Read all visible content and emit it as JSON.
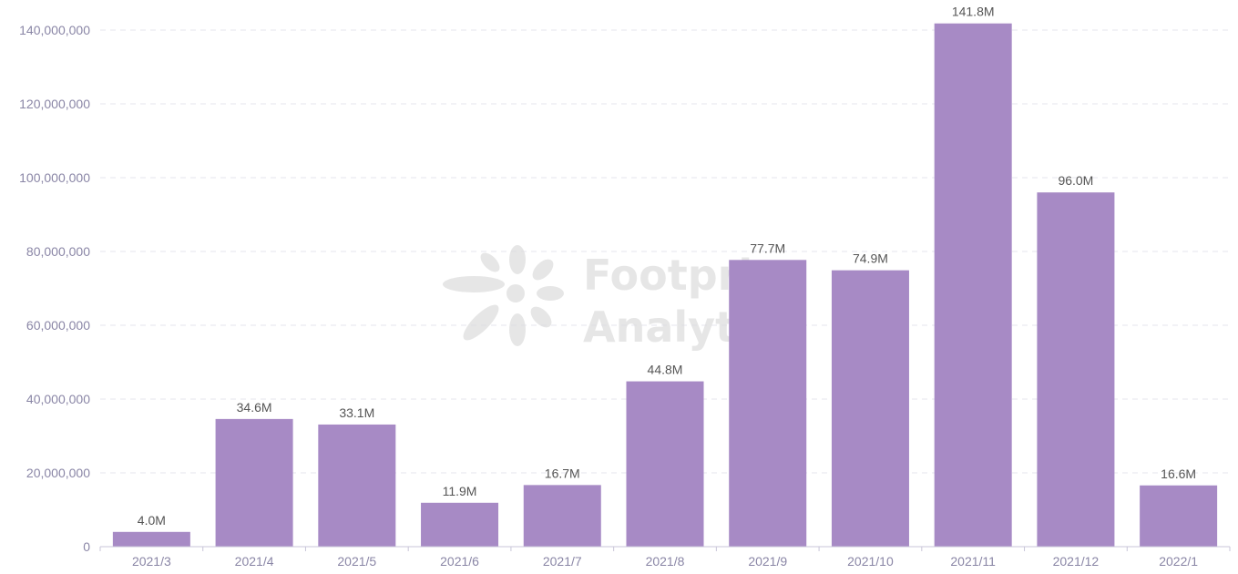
{
  "chart_data": {
    "type": "bar",
    "categories": [
      "2021/3",
      "2021/4",
      "2021/5",
      "2021/6",
      "2021/7",
      "2021/8",
      "2021/9",
      "2021/10",
      "2021/11",
      "2021/12",
      "2022/1"
    ],
    "values": [
      4000000,
      34600000,
      33100000,
      11900000,
      16700000,
      44800000,
      77700000,
      74900000,
      141800000,
      96000000,
      16600000
    ],
    "data_labels": [
      "4.0M",
      "34.6M",
      "33.1M",
      "11.9M",
      "16.7M",
      "44.8M",
      "77.7M",
      "74.9M",
      "141.8M",
      "96.0M",
      "16.6M"
    ],
    "y_ticks": [
      "0",
      "20,000,000",
      "40,000,000",
      "60,000,000",
      "80,000,000",
      "100,000,000",
      "120,000,000",
      "140,000,000"
    ],
    "ylim": [
      0,
      140000000
    ],
    "grid": true,
    "bar_color": "#a78ac5"
  },
  "watermark": {
    "line1": "Footprint",
    "line2": "Analytics"
  }
}
